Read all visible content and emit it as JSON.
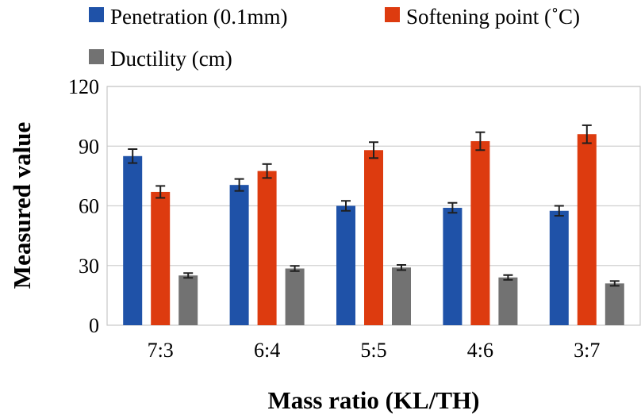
{
  "chart_data": {
    "type": "bar",
    "title": "",
    "xlabel": "Mass ratio (KL/TH)",
    "ylabel": "Measured value",
    "ylim": [
      0,
      120
    ],
    "yticks": [
      0,
      30,
      60,
      90,
      120
    ],
    "grid": true,
    "legend_position": "top",
    "categories": [
      "7:3",
      "6:4",
      "5:5",
      "4:6",
      "3:7"
    ],
    "series": [
      {
        "name": "Penetration (0.1mm)",
        "color": "#1f52a8",
        "values": [
          85,
          70.5,
          60,
          59,
          57.5
        ],
        "errors": [
          3.5,
          3,
          2.5,
          2.5,
          2.5
        ]
      },
      {
        "name": "Softening point (˚C)",
        "color": "#dd3b0f",
        "values": [
          67,
          77.5,
          88,
          92.5,
          96
        ],
        "errors": [
          3,
          3.5,
          4,
          4.5,
          4.5
        ]
      },
      {
        "name": "Ductility (cm)",
        "color": "#727272",
        "values": [
          25,
          28.5,
          29,
          24,
          21
        ],
        "errors": [
          1.2,
          1.3,
          1.3,
          1.2,
          1.2
        ]
      }
    ]
  }
}
